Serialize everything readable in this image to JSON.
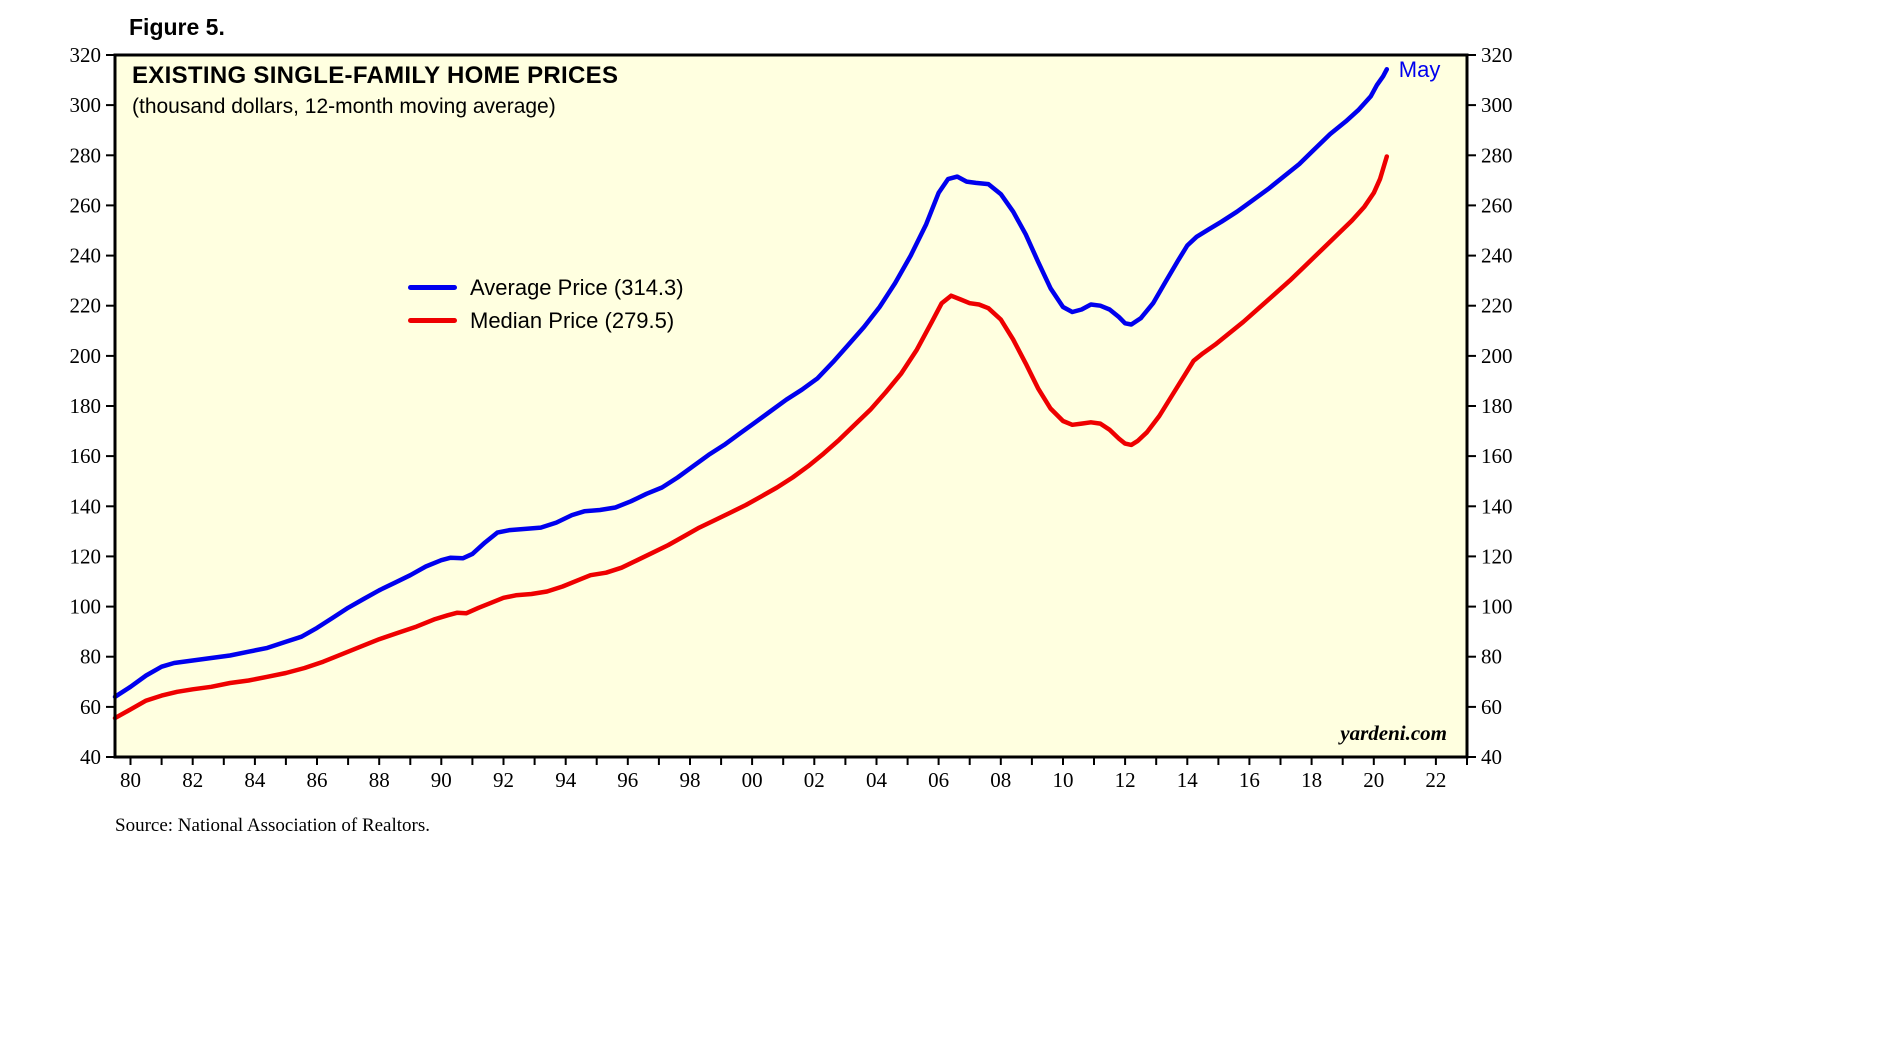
{
  "figure_label": "Figure 5.",
  "annotation_label": "May",
  "watermark": "yardeni.com",
  "source_note": "Source: National Association of Realtors.",
  "colors": {
    "average": "#0000EE",
    "median": "#EE0000",
    "plot_bg": "#FFFFE0",
    "annotation": "#0000EE",
    "axis": "#000000"
  },
  "chart_data": {
    "type": "line",
    "title": "EXISTING SINGLE-FAMILY HOME PRICES",
    "subtitle": "(thousand dollars, 12-month moving average)",
    "xlabel": "",
    "ylabel": "",
    "grid": false,
    "legend_position": "upper-center-left",
    "ylim": [
      40,
      320
    ],
    "yticks": [
      40,
      60,
      80,
      100,
      120,
      140,
      160,
      180,
      200,
      220,
      240,
      260,
      280,
      300,
      320
    ],
    "xlim": [
      1979.5,
      2023
    ],
    "xticks": [
      1980,
      1982,
      1984,
      1986,
      1988,
      1990,
      1992,
      1994,
      1996,
      1998,
      2000,
      2002,
      2004,
      2006,
      2008,
      2010,
      2012,
      2014,
      2016,
      2018,
      2020,
      2022
    ],
    "xtick_labels": [
      "80",
      "82",
      "84",
      "86",
      "88",
      "90",
      "92",
      "94",
      "96",
      "98",
      "00",
      "02",
      "04",
      "06",
      "08",
      "10",
      "12",
      "14",
      "16",
      "18",
      "20",
      "22"
    ],
    "series": [
      {
        "name": "Average Price",
        "legend_label": "Average Price (314.3)",
        "color": "#0000EE",
        "last_value": 314.3,
        "points": [
          [
            1979.5,
            64
          ],
          [
            1980,
            68
          ],
          [
            1980.5,
            72.5
          ],
          [
            1981,
            76
          ],
          [
            1981.4,
            77.5
          ],
          [
            1982,
            78.5
          ],
          [
            1982.6,
            79.5
          ],
          [
            1983.2,
            80.5
          ],
          [
            1983.8,
            82
          ],
          [
            1984.4,
            83.5
          ],
          [
            1985,
            86
          ],
          [
            1985.5,
            88
          ],
          [
            1986,
            91.5
          ],
          [
            1986.5,
            95.5
          ],
          [
            1987,
            99.5
          ],
          [
            1987.5,
            103
          ],
          [
            1988,
            106.5
          ],
          [
            1988.5,
            109.5
          ],
          [
            1989,
            112.5
          ],
          [
            1989.5,
            116
          ],
          [
            1990,
            118.5
          ],
          [
            1990.3,
            119.5
          ],
          [
            1990.7,
            119.3
          ],
          [
            1991,
            121
          ],
          [
            1991.4,
            125.5
          ],
          [
            1991.8,
            129.5
          ],
          [
            1992.2,
            130.5
          ],
          [
            1992.7,
            131
          ],
          [
            1993.2,
            131.5
          ],
          [
            1993.7,
            133.5
          ],
          [
            1994.2,
            136.5
          ],
          [
            1994.6,
            138
          ],
          [
            1995.1,
            138.5
          ],
          [
            1995.6,
            139.5
          ],
          [
            1996.1,
            142
          ],
          [
            1996.6,
            145
          ],
          [
            1997.1,
            147.5
          ],
          [
            1997.6,
            151.5
          ],
          [
            1998.1,
            156
          ],
          [
            1998.6,
            160.5
          ],
          [
            1999.1,
            164.5
          ],
          [
            1999.6,
            169
          ],
          [
            2000.1,
            173.5
          ],
          [
            2000.6,
            178
          ],
          [
            2001.1,
            182.5
          ],
          [
            2001.6,
            186.5
          ],
          [
            2002.1,
            191
          ],
          [
            2002.6,
            197.5
          ],
          [
            2003.1,
            204.5
          ],
          [
            2003.6,
            211.5
          ],
          [
            2004.1,
            219.5
          ],
          [
            2004.6,
            229
          ],
          [
            2005.1,
            240
          ],
          [
            2005.6,
            252.5
          ],
          [
            2006,
            265
          ],
          [
            2006.3,
            270.5
          ],
          [
            2006.6,
            271.5
          ],
          [
            2006.9,
            269.5
          ],
          [
            2007.2,
            269
          ],
          [
            2007.6,
            268.5
          ],
          [
            2008,
            264.5
          ],
          [
            2008.4,
            257.5
          ],
          [
            2008.8,
            248.5
          ],
          [
            2009.2,
            237.5
          ],
          [
            2009.6,
            227
          ],
          [
            2010,
            219.5
          ],
          [
            2010.3,
            217.5
          ],
          [
            2010.6,
            218.5
          ],
          [
            2010.9,
            220.5
          ],
          [
            2011.2,
            220
          ],
          [
            2011.5,
            218.5
          ],
          [
            2011.8,
            215.5
          ],
          [
            2012,
            213
          ],
          [
            2012.2,
            212.5
          ],
          [
            2012.5,
            215
          ],
          [
            2012.9,
            221
          ],
          [
            2013.3,
            229.5
          ],
          [
            2013.7,
            238
          ],
          [
            2014,
            244
          ],
          [
            2014.3,
            247.5
          ],
          [
            2014.7,
            250.5
          ],
          [
            2015.1,
            253.5
          ],
          [
            2015.6,
            257.5
          ],
          [
            2016.1,
            262
          ],
          [
            2016.6,
            266.5
          ],
          [
            2017.1,
            271.5
          ],
          [
            2017.6,
            276.5
          ],
          [
            2018.1,
            282.5
          ],
          [
            2018.6,
            288.5
          ],
          [
            2019.1,
            293.5
          ],
          [
            2019.5,
            298
          ],
          [
            2019.9,
            303.5
          ],
          [
            2020.1,
            308
          ],
          [
            2020.3,
            311.5
          ],
          [
            2020.42,
            314.3
          ]
        ]
      },
      {
        "name": "Median Price",
        "legend_label": "Median Price (279.5)",
        "color": "#EE0000",
        "last_value": 279.5,
        "points": [
          [
            1979.5,
            55.5
          ],
          [
            1980,
            59
          ],
          [
            1980.5,
            62.5
          ],
          [
            1981,
            64.5
          ],
          [
            1981.5,
            66
          ],
          [
            1982,
            67
          ],
          [
            1982.6,
            68
          ],
          [
            1983.2,
            69.5
          ],
          [
            1983.8,
            70.5
          ],
          [
            1984.4,
            72
          ],
          [
            1985,
            73.5
          ],
          [
            1985.6,
            75.5
          ],
          [
            1986.2,
            78
          ],
          [
            1986.8,
            81
          ],
          [
            1987.4,
            84
          ],
          [
            1988,
            87
          ],
          [
            1988.6,
            89.5
          ],
          [
            1989.2,
            92
          ],
          [
            1989.8,
            95
          ],
          [
            1990.2,
            96.5
          ],
          [
            1990.5,
            97.5
          ],
          [
            1990.8,
            97.3
          ],
          [
            1991.2,
            99.5
          ],
          [
            1991.6,
            101.5
          ],
          [
            1992,
            103.5
          ],
          [
            1992.4,
            104.5
          ],
          [
            1992.9,
            105
          ],
          [
            1993.4,
            106
          ],
          [
            1993.9,
            108
          ],
          [
            1994.4,
            110.5
          ],
          [
            1994.8,
            112.5
          ],
          [
            1995.3,
            113.5
          ],
          [
            1995.8,
            115.5
          ],
          [
            1996.3,
            118.5
          ],
          [
            1996.8,
            121.5
          ],
          [
            1997.3,
            124.5
          ],
          [
            1997.8,
            128
          ],
          [
            1998.3,
            131.5
          ],
          [
            1998.8,
            134.5
          ],
          [
            1999.3,
            137.5
          ],
          [
            1999.8,
            140.5
          ],
          [
            2000.3,
            144
          ],
          [
            2000.8,
            147.5
          ],
          [
            2001.3,
            151.5
          ],
          [
            2001.8,
            156
          ],
          [
            2002.3,
            161
          ],
          [
            2002.8,
            166.5
          ],
          [
            2003.3,
            172.5
          ],
          [
            2003.8,
            178.5
          ],
          [
            2004.3,
            185.5
          ],
          [
            2004.8,
            193
          ],
          [
            2005.3,
            202.5
          ],
          [
            2005.8,
            214
          ],
          [
            2006.1,
            221
          ],
          [
            2006.4,
            224
          ],
          [
            2006.7,
            222.5
          ],
          [
            2007,
            221
          ],
          [
            2007.3,
            220.5
          ],
          [
            2007.6,
            219
          ],
          [
            2008,
            214.5
          ],
          [
            2008.4,
            206.5
          ],
          [
            2008.8,
            197
          ],
          [
            2009.2,
            187
          ],
          [
            2009.6,
            179
          ],
          [
            2010,
            174
          ],
          [
            2010.3,
            172.5
          ],
          [
            2010.6,
            173
          ],
          [
            2010.9,
            173.5
          ],
          [
            2011.2,
            173
          ],
          [
            2011.5,
            170.5
          ],
          [
            2011.8,
            167
          ],
          [
            2012,
            165
          ],
          [
            2012.2,
            164.5
          ],
          [
            2012.4,
            166
          ],
          [
            2012.7,
            169.5
          ],
          [
            2013.1,
            176
          ],
          [
            2013.5,
            184
          ],
          [
            2013.9,
            192
          ],
          [
            2014.2,
            198
          ],
          [
            2014.5,
            201
          ],
          [
            2014.9,
            204.5
          ],
          [
            2015.3,
            208.5
          ],
          [
            2015.8,
            213.5
          ],
          [
            2016.3,
            219
          ],
          [
            2016.8,
            224.5
          ],
          [
            2017.3,
            230
          ],
          [
            2017.8,
            236
          ],
          [
            2018.3,
            242
          ],
          [
            2018.8,
            248
          ],
          [
            2019.3,
            254
          ],
          [
            2019.7,
            259.5
          ],
          [
            2020,
            265
          ],
          [
            2020.2,
            270.5
          ],
          [
            2020.42,
            279.5
          ]
        ]
      }
    ]
  }
}
